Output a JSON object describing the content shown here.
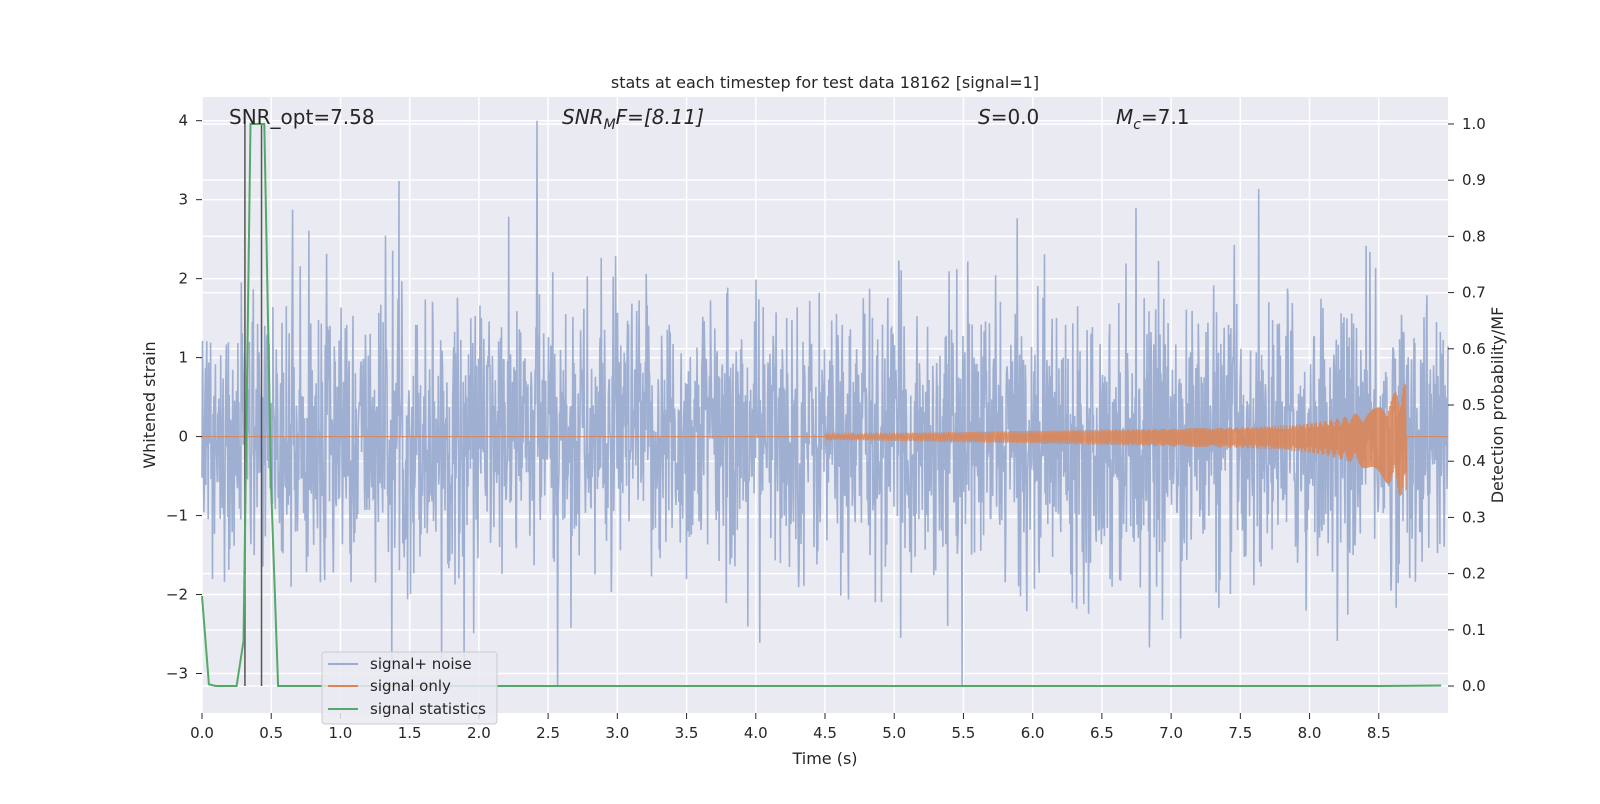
{
  "chart_data": {
    "type": "line",
    "title": "stats at each timestep for test data 18162 [signal=1]",
    "xlabel": "Time (s)",
    "ylabel_left": "Whitened strain",
    "ylabel_right": "Detection probability/MF",
    "xlim": [
      0.0,
      9.0
    ],
    "ylim_left": [
      -3.5,
      4.3
    ],
    "ylim_right": [
      -0.048,
      1.048
    ],
    "x_ticks": [
      0.0,
      0.5,
      1.0,
      1.5,
      2.0,
      2.5,
      3.0,
      3.5,
      4.0,
      4.5,
      5.0,
      5.5,
      6.0,
      6.5,
      7.0,
      7.5,
      8.0,
      8.5
    ],
    "x_tick_labels": [
      "0.0",
      "0.5",
      "1.0",
      "1.5",
      "2.0",
      "2.5",
      "3.0",
      "3.5",
      "4.0",
      "4.5",
      "5.0",
      "5.5",
      "6.0",
      "6.5",
      "7.0",
      "7.5",
      "8.0",
      "8.5"
    ],
    "y_left_ticks": [
      -3,
      -2,
      -1,
      0,
      1,
      2,
      3,
      4
    ],
    "y_left_tick_labels": [
      "−3",
      "−2",
      "−1",
      "0",
      "1",
      "2",
      "3",
      "4"
    ],
    "y_right_ticks": [
      0.0,
      0.1,
      0.2,
      0.3,
      0.4,
      0.5,
      0.6,
      0.7,
      0.8,
      0.9,
      1.0
    ],
    "y_right_tick_labels": [
      "0.0",
      "0.1",
      "0.2",
      "0.3",
      "0.4",
      "0.5",
      "0.6",
      "0.7",
      "0.8",
      "0.9",
      "1.0"
    ],
    "grid": true,
    "legend_position": "lower-left",
    "annotations": {
      "snr_opt": "SNR_opt=7.58",
      "snr_mf_base": "SNR",
      "snr_mf_sub": "M",
      "snr_mf_rest": "F=[8.11]",
      "s_base": "S",
      "s_rest": "=0.0",
      "mc_base": "M",
      "mc_sub": "c",
      "mc_rest": "=7.1"
    },
    "vertical_lines_x": [
      0.31,
      0.43
    ],
    "series": [
      {
        "name": "signal+ noise",
        "color": "#9aacd0",
        "axis": "left",
        "description_values": {
          "x_start": 0.0,
          "x_end": 9.0,
          "typical_min": -1.7,
          "typical_max": 1.7,
          "peak_max": 4.0,
          "peak_max_x": 2.42,
          "peak_min": -3.15,
          "peak_min_x": 2.57
        }
      },
      {
        "name": "signal only",
        "color": "#dd8452",
        "axis": "left",
        "description_values": {
          "x_start": 0.0,
          "x_end": 9.0,
          "chirp_start_x": 4.5,
          "chirp_end_x": 8.7,
          "peak_upper": 0.7,
          "peak_lower": -0.85
        }
      },
      {
        "name": "signal statistics",
        "color": "#55a868",
        "axis": "right",
        "x": [
          0.0,
          0.05,
          0.1,
          0.15,
          0.25,
          0.3,
          0.35,
          0.4,
          0.45,
          0.5,
          0.55,
          0.6,
          1.0,
          2.0,
          3.0,
          4.0,
          5.0,
          6.0,
          7.0,
          8.0,
          8.5,
          8.95
        ],
        "values": [
          0.16,
          0.003,
          0.0,
          0.0,
          0.0,
          0.08,
          1.0,
          1.0,
          1.0,
          0.35,
          0.0,
          0.0,
          0.0,
          0.0,
          0.0,
          0.0,
          0.0,
          0.0,
          0.0,
          0.0,
          0.0,
          0.001
        ]
      }
    ]
  },
  "colors": {
    "plot_background": "#eaeaf2",
    "grid": "#ffffff",
    "vline": "#555555"
  }
}
